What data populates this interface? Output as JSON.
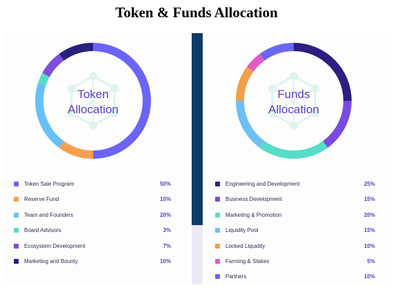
{
  "title": "Token & Funds Allocation",
  "colors": {
    "divider_top": "#0b3b66",
    "divider_bottom": "#ede9f7",
    "center_text": "#5a3fc0",
    "value_text": "#5b3cc4",
    "watermark": "#dff3ef"
  },
  "chart_data": [
    {
      "type": "pie",
      "donut": true,
      "center_label": [
        "Token",
        "Allocation"
      ],
      "categories": [
        "Token Sale Program",
        "Reserve Fund",
        "Team and Founders",
        "Board Advisors",
        "Ecosystem Development",
        "Marketing and Bounty"
      ],
      "values": [
        50,
        10,
        20,
        3,
        7,
        10
      ],
      "value_labels": [
        "50%",
        "10%",
        "20%",
        "3%",
        "7%",
        "10%"
      ],
      "colors": [
        "#6c63f7",
        "#f6a04d",
        "#68c0f8",
        "#53dcc9",
        "#7e4fdc",
        "#2b1f7d"
      ],
      "legend_position": "bottom"
    },
    {
      "type": "pie",
      "donut": true,
      "center_label": [
        "Funds",
        "Allocation"
      ],
      "categories": [
        "Engineering and Development",
        "Business Development",
        "Marketing & Promotion",
        "Liquidity Pool",
        "Locked Liquidity",
        "Farming & Stakes",
        "Partners"
      ],
      "values": [
        25,
        15,
        20,
        15,
        10,
        5,
        10
      ],
      "value_labels": [
        "25%",
        "15%",
        "20%",
        "15%",
        "10%",
        "5%",
        "10%"
      ],
      "colors": [
        "#2f1d82",
        "#7a4be0",
        "#55ddc8",
        "#6cc0f6",
        "#f0a04a",
        "#e15cc8",
        "#6b67f2"
      ],
      "legend_position": "bottom"
    }
  ]
}
